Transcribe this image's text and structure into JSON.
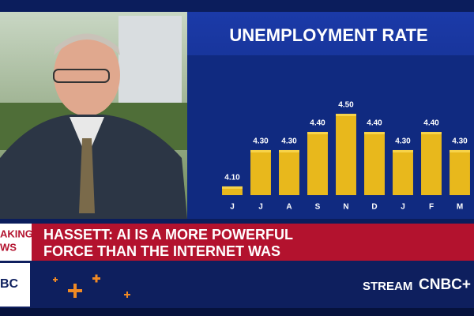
{
  "chart_data": {
    "type": "bar",
    "title": "UNEMPLOYMENT RATE",
    "categories": [
      "J",
      "J",
      "A",
      "S",
      "N",
      "D",
      "J",
      "F",
      "M"
    ],
    "values": [
      4.1,
      4.3,
      4.3,
      4.4,
      4.5,
      4.4,
      4.3,
      4.4,
      4.3
    ],
    "value_labels": [
      "4.10",
      "4.30",
      "4.30",
      "4.40",
      "4.50",
      "4.40",
      "4.30",
      "4.40",
      "4.30"
    ],
    "color": "#e8b81c"
  },
  "lower_third": {
    "tag_lines": [
      "AKING",
      "WS"
    ],
    "headline_lines": [
      "HASSETT: AI IS A MORE POWERFUL",
      "FORCE THAN THE INTERNET WAS"
    ]
  },
  "ticker": {
    "logo_fragment": "BC",
    "stream": "STREAM",
    "brand": "CNBC+"
  }
}
